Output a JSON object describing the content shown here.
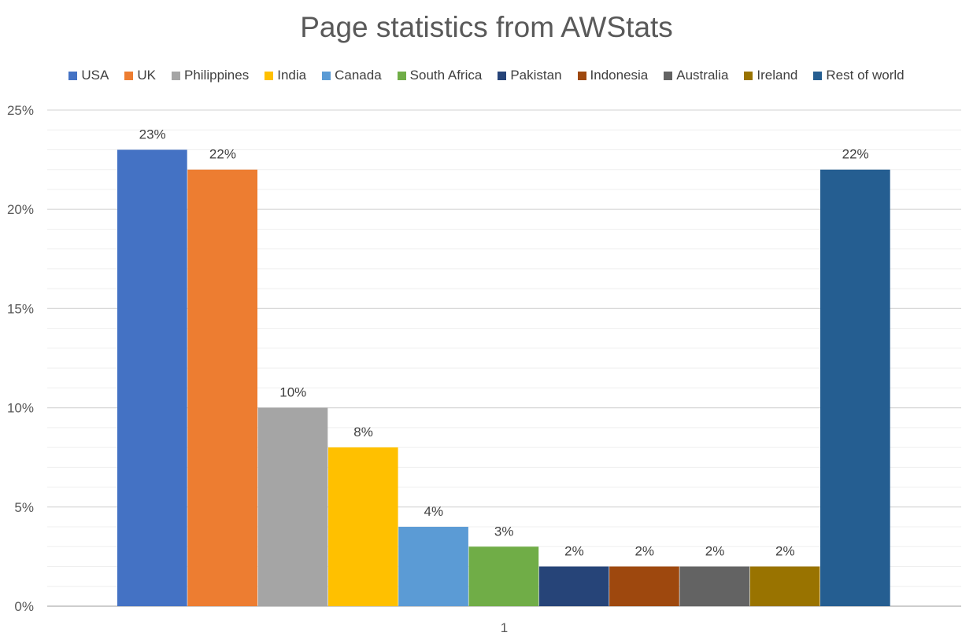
{
  "chart_data": {
    "type": "bar",
    "title": "Page statistics from AWStats",
    "categories": [
      "1"
    ],
    "series": [
      {
        "name": "USA",
        "values": [
          23
        ],
        "label": "23%",
        "color": "#4472C4"
      },
      {
        "name": "UK",
        "values": [
          22
        ],
        "label": "22%",
        "color": "#ED7D31"
      },
      {
        "name": "Philippines",
        "values": [
          10
        ],
        "label": "10%",
        "color": "#A5A5A5"
      },
      {
        "name": "India",
        "values": [
          8
        ],
        "label": "8%",
        "color": "#FFC000"
      },
      {
        "name": "Canada",
        "values": [
          4
        ],
        "label": "4%",
        "color": "#5B9BD5"
      },
      {
        "name": "South Africa",
        "values": [
          3
        ],
        "label": "3%",
        "color": "#70AD47"
      },
      {
        "name": "Pakistan",
        "values": [
          2
        ],
        "label": "2%",
        "color": "#264478"
      },
      {
        "name": "Indonesia",
        "values": [
          2
        ],
        "label": "2%",
        "color": "#9E480E"
      },
      {
        "name": "Australia",
        "values": [
          2
        ],
        "label": "2%",
        "color": "#636363"
      },
      {
        "name": "Ireland",
        "values": [
          2
        ],
        "label": "2%",
        "color": "#997300"
      },
      {
        "name": "Rest of world",
        "values": [
          22
        ],
        "label": "22%",
        "color": "#255E91"
      }
    ],
    "yticks": [
      "0%",
      "5%",
      "10%",
      "15%",
      "20%",
      "25%"
    ],
    "ylim": [
      0,
      25
    ],
    "minor_gridline_step": 1,
    "xlabel": "",
    "ylabel": "",
    "legend_position": "top",
    "grid": true
  }
}
